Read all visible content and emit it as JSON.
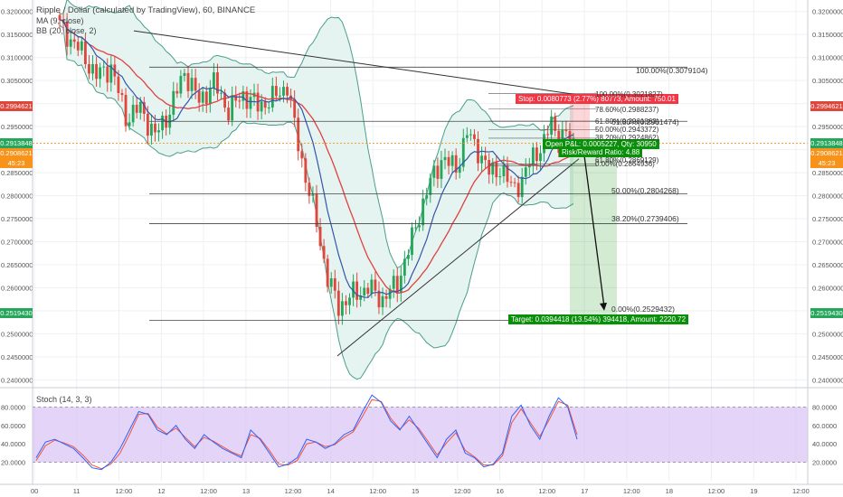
{
  "header": {
    "title": "Ripple / Dollar (calculated by TradingView), 60, BINANCE",
    "ma": "MA (9, close)",
    "bb": "BB (20, close, 2)"
  },
  "stoch_label": "Stoch (14, 3, 3)",
  "price_tags": {
    "upper": "0.2994621",
    "current": "0.2913848",
    "current_sub": "0.2908621",
    "countdown": "45:23",
    "lower": "0.2519430"
  },
  "position": {
    "stop": "Stop: 0.0080773 (2.77%) 80773, Amount: 750.01",
    "open": "Open P&L: 0.0005227, Qty: 30950",
    "rr": "Risk/Reward Ratio: 4.88",
    "target": "Target: 0.0394418 (13.54%) 394418, Amount: 2220.72"
  },
  "fib_main": [
    {
      "label": "100.00%(0.3079104)",
      "value": 0.3079104
    },
    {
      "label": "61.80%(0.2961474)",
      "value": 0.2961474
    },
    {
      "label": "50.00%(0.2804268)",
      "value": 0.2804268
    },
    {
      "label": "38.20%(0.2739406)",
      "value": 0.2739406
    },
    {
      "label": "0.00%(0.2529432)",
      "value": 0.2529432
    }
  ],
  "fib_small": [
    {
      "label": "100.00%(0.3021827)",
      "value": 0.3021827
    },
    {
      "label": "78.60%(0.2988237)",
      "value": 0.2988237
    },
    {
      "label": "61.80%(0.2961863)",
      "value": 0.2961863
    },
    {
      "label": "50.00%(0.2943372)",
      "value": 0.2943372
    },
    {
      "label": "38.20%(0.2924862)",
      "value": 0.2924862
    },
    {
      "label": "61.80%(0.2869129)",
      "value": 0.2869129
    },
    {
      "label": "0.00%(0.2864936)",
      "value": 0.2864936
    }
  ],
  "colors": {
    "bull": "#26a65b",
    "bear": "#e0473c",
    "ma": "#3355aa",
    "bb_mid": "#e04040",
    "bb_band": "#4a9e8a",
    "stop": "#f23645",
    "target": "#0a8f0a",
    "k": "#2962ff",
    "d": "#f2553d",
    "stoch_fill": "#d7c2f5"
  },
  "chart_data": [
    {
      "type": "candlestick",
      "title": "Ripple / Dollar (calculated by TradingView), 60, BINANCE",
      "ylabel": "",
      "ylim": [
        0.2385,
        0.3225
      ],
      "yticks": [
        "0.3200000",
        "0.3150000",
        "0.3100000",
        "0.3050000",
        "0.3000000",
        "0.2950000",
        "0.2900000",
        "0.2850000",
        "0.2800000",
        "0.2750000",
        "0.2700000",
        "0.2650000",
        "0.2600000",
        "0.2550000",
        "0.2500000",
        "0.2450000",
        "0.2400000"
      ],
      "xticks": [
        "00",
        "11",
        "12:00",
        "12",
        "12:00",
        "13",
        "12:00",
        "14",
        "12:00",
        "15",
        "12:00",
        "16",
        "12:00",
        "17",
        "12:00",
        "18",
        "12:00",
        "19",
        "12:00"
      ],
      "close_path": [
        [
          0,
          0.317
        ],
        [
          6,
          0.311
        ],
        [
          10,
          0.306
        ],
        [
          14,
          0.308
        ],
        [
          18,
          0.297
        ],
        [
          22,
          0.299
        ],
        [
          26,
          0.293
        ],
        [
          30,
          0.2985
        ],
        [
          34,
          0.307
        ],
        [
          38,
          0.3005
        ],
        [
          42,
          0.3045
        ],
        [
          46,
          0.2985
        ],
        [
          50,
          0.302
        ],
        [
          54,
          0.2995
        ],
        [
          58,
          0.301
        ],
        [
          62,
          0.304
        ],
        [
          64,
          0.295
        ],
        [
          67,
          0.284
        ],
        [
          70,
          0.274
        ],
        [
          73,
          0.262
        ],
        [
          76,
          0.256
        ],
        [
          80,
          0.2585
        ],
        [
          84,
          0.26
        ],
        [
          88,
          0.2575
        ],
        [
          92,
          0.261
        ],
        [
          95,
          0.268
        ],
        [
          98,
          0.276
        ],
        [
          101,
          0.283
        ],
        [
          104,
          0.288
        ],
        [
          108,
          0.286
        ],
        [
          111,
          0.2935
        ],
        [
          114,
          0.29
        ],
        [
          117,
          0.285
        ],
        [
          120,
          0.286
        ],
        [
          123,
          0.282
        ],
        [
          126,
          0.283
        ],
        [
          129,
          0.289
        ],
        [
          132,
          0.291
        ],
        [
          134,
          0.2965
        ],
        [
          136,
          0.292
        ],
        [
          138,
          0.293
        ],
        [
          140,
          0.2914
        ]
      ]
    },
    {
      "type": "line",
      "title": "Stoch (14, 3, 3)",
      "ylim": [
        0,
        100
      ],
      "yticks": [
        "80.0000",
        "60.0000",
        "40.0000",
        "20.0000"
      ],
      "band": [
        20,
        80
      ],
      "series": [
        {
          "values": [
            25,
            42,
            45,
            40,
            35,
            25,
            14,
            12,
            20,
            35,
            55,
            75,
            72,
            55,
            50,
            60,
            45,
            35,
            50,
            42,
            35,
            30,
            25,
            55,
            45,
            30,
            15,
            18,
            25,
            45,
            42,
            35,
            40,
            50,
            55,
            75,
            93,
            85,
            65,
            55,
            70,
            55,
            40,
            25,
            45,
            55,
            30,
            25,
            15,
            18,
            30,
            70,
            82,
            60,
            45,
            70,
            90,
            80,
            45
          ]
        },
        {
          "values": [
            22,
            38,
            44,
            41,
            37,
            28,
            17,
            13,
            18,
            30,
            50,
            72,
            73,
            58,
            51,
            57,
            47,
            37,
            47,
            43,
            37,
            31,
            27,
            50,
            46,
            33,
            18,
            17,
            22,
            40,
            42,
            37,
            39,
            47,
            53,
            70,
            88,
            86,
            68,
            56,
            66,
            57,
            43,
            28,
            41,
            52,
            33,
            26,
            17,
            17,
            27,
            63,
            78,
            63,
            48,
            66,
            86,
            82,
            50
          ]
        }
      ]
    }
  ]
}
